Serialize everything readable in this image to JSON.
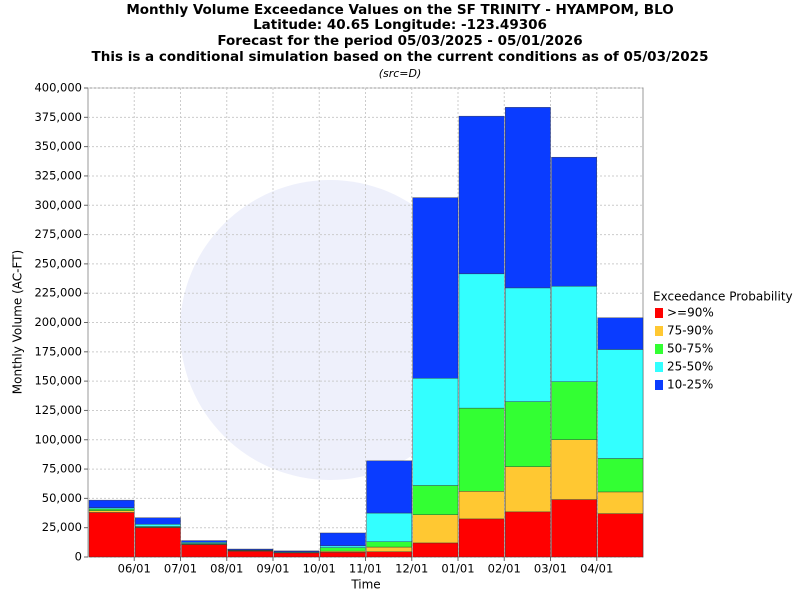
{
  "chart_data": {
    "type": "stacked_bar",
    "title": [
      "Monthly Volume Exceedance Values on the SF TRINITY - HYAMPOM, BLO",
      "Latitude: 40.65 Longitude: -123.49306",
      "Forecast for the period 05/03/2025 - 05/01/2026",
      "This is a conditional simulation based on the current conditions as of 05/03/2025"
    ],
    "subtitle": "(src=D)",
    "x_label": "Time",
    "y_label": "Monthly Volume (AC-FT)",
    "legend_title": "Exceedance Probability",
    "legend_position": "right",
    "grid": true,
    "categories": [
      null,
      null,
      null,
      null,
      null,
      null,
      null,
      null,
      null,
      null,
      null,
      null
    ],
    "xticks": [
      "06/01",
      "07/01",
      "08/01",
      "09/01",
      "10/01",
      "11/01",
      "12/01",
      "01/01",
      "02/01",
      "03/01",
      "04/01"
    ],
    "ylim": [
      0,
      400000
    ],
    "yticks": [
      0,
      {
        "value": 25000,
        "label": "25,000"
      },
      {
        "value": 50000,
        "label": "50,000"
      },
      {
        "value": 75000,
        "label": "75,000"
      },
      {
        "value": 100000,
        "label": "100,000"
      },
      {
        "value": 125000,
        "label": "125,000"
      },
      {
        "value": 150000,
        "label": "150,000"
      },
      {
        "value": 175000,
        "label": "175,000"
      },
      {
        "value": 200000,
        "label": "200,000"
      },
      {
        "value": 225000,
        "label": "225,000"
      },
      {
        "value": 250000,
        "label": "250,000"
      },
      {
        "value": 275000,
        "label": "275,000"
      },
      {
        "value": 300000,
        "label": "300,000"
      },
      {
        "value": 325000,
        "label": "325,000"
      },
      {
        "value": 350000,
        "label": "350,000"
      },
      {
        "value": 375000,
        "label": "375,000"
      },
      {
        "value": 400000,
        "label": "400,000"
      }
    ],
    "series": [
      {
        "name": ">=90%",
        "color": "#ff0000",
        "values": [
          38000,
          25000,
          10500,
          5000,
          3500,
          4000,
          4500,
          12000,
          32500,
          38500,
          49000,
          37000
        ]
      },
      {
        "name": "75-90%",
        "color": "#ffc832",
        "values": [
          1500,
          500,
          500,
          300,
          200,
          1000,
          4000,
          24000,
          23500,
          38500,
          51000,
          18500
        ]
      },
      {
        "name": "50-75%",
        "color": "#33ff33",
        "values": [
          1500,
          500,
          500,
          300,
          200,
          3000,
          4500,
          25000,
          71000,
          55500,
          49500,
          28500
        ]
      },
      {
        "name": "25-50%",
        "color": "#33ffff",
        "values": [
          1000,
          2000,
          1000,
          400,
          500,
          1500,
          24500,
          91500,
          114500,
          97000,
          81500,
          93000
        ]
      },
      {
        "name": "10-25%",
        "color": "#0a3cff",
        "values": [
          6500,
          5500,
          1500,
          800,
          800,
          11000,
          44500,
          154000,
          134500,
          154000,
          110000,
          27000
        ]
      }
    ]
  }
}
